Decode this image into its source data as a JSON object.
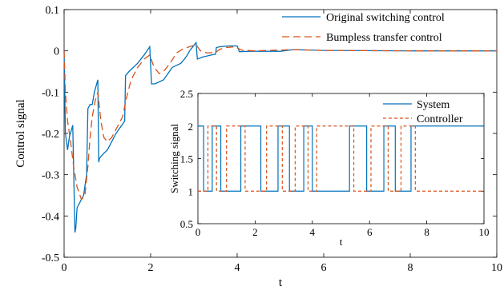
{
  "chart_data": [
    {
      "type": "line",
      "panel": "main",
      "xlabel": "t",
      "ylabel": "Control signal",
      "xlim": [
        0,
        10
      ],
      "ylim": [
        -0.5,
        0.1
      ],
      "xticks": [
        0,
        2,
        4,
        6,
        8,
        10
      ],
      "yticks": [
        -0.5,
        -0.4,
        -0.3,
        -0.2,
        -0.1,
        0,
        0.1
      ],
      "xtick_labels": [
        "0",
        "2",
        "4",
        "6",
        "8",
        "10"
      ],
      "ytick_labels": [
        "-0.5",
        "-0.4",
        "-0.3",
        "-0.2",
        "-0.1",
        "0",
        "0.1"
      ],
      "grid": false,
      "legend": "top-right",
      "series": [
        {
          "name": "Original switching control",
          "color": "#0072BD",
          "style": "solid",
          "points": [
            [
              0,
              0
            ],
            [
              0.03,
              -0.2
            ],
            [
              0.08,
              -0.24
            ],
            [
              0.12,
              -0.21
            ],
            [
              0.2,
              -0.18
            ],
            [
              0.25,
              -0.44
            ],
            [
              0.27,
              -0.43
            ],
            [
              0.3,
              -0.38
            ],
            [
              0.45,
              -0.35
            ],
            [
              0.52,
              -0.3
            ],
            [
              0.55,
              -0.14
            ],
            [
              0.6,
              -0.13
            ],
            [
              0.65,
              -0.13
            ],
            [
              0.7,
              -0.1
            ],
            [
              0.78,
              -0.07
            ],
            [
              0.8,
              -0.27
            ],
            [
              0.82,
              -0.26
            ],
            [
              0.9,
              -0.25
            ],
            [
              1.0,
              -0.24
            ],
            [
              1.2,
              -0.2
            ],
            [
              1.4,
              -0.17
            ],
            [
              1.42,
              -0.06
            ],
            [
              1.5,
              -0.05
            ],
            [
              1.7,
              -0.03
            ],
            [
              1.85,
              -0.01
            ],
            [
              1.98,
              0.01
            ],
            [
              2.02,
              -0.08
            ],
            [
              2.1,
              -0.08
            ],
            [
              2.3,
              -0.07
            ],
            [
              2.5,
              -0.04
            ],
            [
              2.7,
              -0.03
            ],
            [
              2.78,
              -0.02
            ],
            [
              2.85,
              -0.01
            ],
            [
              2.9,
              0
            ],
            [
              3.05,
              0.02
            ],
            [
              3.08,
              -0.02
            ],
            [
              3.2,
              -0.015
            ],
            [
              3.4,
              -0.01
            ],
            [
              3.5,
              -0.008
            ],
            [
              3.52,
              0.008
            ],
            [
              3.6,
              0.01
            ],
            [
              3.8,
              0.012
            ],
            [
              4.0,
              0.012
            ],
            [
              4.05,
              -0.002
            ],
            [
              4.3,
              -0.001
            ],
            [
              5,
              -0.001
            ],
            [
              5.3,
              0.003
            ],
            [
              6,
              0.001
            ],
            [
              8,
              0
            ],
            [
              10,
              0
            ]
          ]
        },
        {
          "name": "Bumpless transfer control",
          "color": "#D95319",
          "style": "dashed",
          "points": [
            [
              0,
              0
            ],
            [
              0.03,
              -0.1
            ],
            [
              0.08,
              -0.17
            ],
            [
              0.15,
              -0.22
            ],
            [
              0.22,
              -0.28
            ],
            [
              0.3,
              -0.33
            ],
            [
              0.4,
              -0.36
            ],
            [
              0.48,
              -0.35
            ],
            [
              0.55,
              -0.28
            ],
            [
              0.6,
              -0.21
            ],
            [
              0.65,
              -0.16
            ],
            [
              0.72,
              -0.12
            ],
            [
              0.78,
              -0.1
            ],
            [
              0.85,
              -0.17
            ],
            [
              0.92,
              -0.21
            ],
            [
              1.0,
              -0.22
            ],
            [
              1.1,
              -0.21
            ],
            [
              1.2,
              -0.19
            ],
            [
              1.35,
              -0.16
            ],
            [
              1.45,
              -0.11
            ],
            [
              1.55,
              -0.07
            ],
            [
              1.7,
              -0.04
            ],
            [
              1.85,
              -0.02
            ],
            [
              1.98,
              -0.01
            ],
            [
              2.08,
              -0.04
            ],
            [
              2.2,
              -0.055
            ],
            [
              2.3,
              -0.05
            ],
            [
              2.45,
              -0.03
            ],
            [
              2.6,
              -0.005
            ],
            [
              2.75,
              0.005
            ],
            [
              2.9,
              0.01
            ],
            [
              3.05,
              0.015
            ],
            [
              3.15,
              0
            ],
            [
              3.3,
              -0.005
            ],
            [
              3.5,
              -0.004
            ],
            [
              3.6,
              0.004
            ],
            [
              3.75,
              0.008
            ],
            [
              3.95,
              0.01
            ],
            [
              4.1,
              0.002
            ],
            [
              4.4,
              0
            ],
            [
              5.3,
              0.003
            ],
            [
              6,
              0.001
            ],
            [
              8,
              0
            ],
            [
              10,
              0
            ]
          ]
        }
      ]
    },
    {
      "type": "line",
      "panel": "inset",
      "xlabel": "t",
      "ylabel": "Switching signal",
      "xlim": [
        0,
        10
      ],
      "ylim": [
        0.5,
        2.5
      ],
      "xticks": [
        0,
        2,
        4,
        6,
        8,
        10
      ],
      "yticks": [
        0.5,
        1,
        1.5,
        2,
        2.5
      ],
      "xtick_labels": [
        "0",
        "2",
        "4",
        "6",
        "8",
        "10"
      ],
      "ytick_labels": [
        "0.5",
        "1",
        "1.5",
        "2",
        "2.5"
      ],
      "grid": false,
      "legend": "top-right",
      "series": [
        {
          "name": "System",
          "color": "#0072BD",
          "style": "solid",
          "step": true,
          "switch_times": [
            0.2,
            0.5,
            0.8,
            1.5,
            2.2,
            2.8,
            3.2,
            3.7,
            4.0,
            5.3,
            5.9,
            6.5,
            6.9,
            7.45
          ],
          "initial": 2
        },
        {
          "name": "Controller",
          "color": "#D95319",
          "style": "dashed",
          "step": true,
          "switch_times": [
            0.35,
            0.65,
            1.0,
            1.65,
            2.4,
            2.95,
            3.4,
            3.85,
            4.15,
            5.45,
            6.05,
            6.65,
            7.1,
            7.6
          ],
          "initial": 1
        }
      ]
    }
  ]
}
